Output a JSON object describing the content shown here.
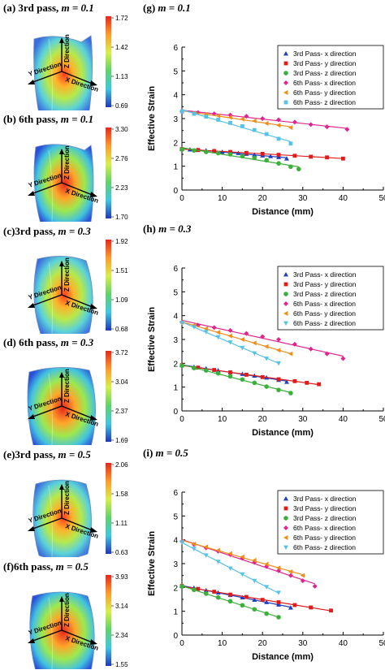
{
  "left_panels": [
    {
      "label": "(a) 3rd pass,",
      "tick_labels": [
        "1.72",
        "1.42",
        "1.13",
        "0.69"
      ],
      "axes": {
        "y": "Y Direction",
        "x": "X Direction",
        "z": "Z Direction"
      }
    },
    {
      "label": "(b) 6th pass,",
      "tick_labels": [
        "3.30",
        "2.76",
        "2.23",
        "1.70"
      ],
      "axes": {
        "y": "Y Direction",
        "x": "X Direction",
        "z": "Z Direction"
      }
    },
    {
      "label": "(c)3rd pass,",
      "tick_labels": [
        "1.92",
        "1.51",
        "1.09",
        "0.68"
      ],
      "axes": {
        "y": "Y Direction",
        "x": "X Direction",
        "z": "Z Direction"
      }
    },
    {
      "label": "(d) 6th pass,",
      "tick_labels": [
        "3.72",
        "3.04",
        "2.37",
        "1.69"
      ],
      "axes": {
        "y": "Y Direction",
        "x": "X Direction",
        "z": "Z Direction"
      }
    },
    {
      "label": "(e)3rd pass,",
      "tick_labels": [
        "2.06",
        "1.58",
        "1.11",
        "0.63"
      ],
      "axes": {
        "y": "Y Direction",
        "x": "X Direction",
        "z": "Z Direction"
      }
    },
    {
      "label": "(f)6th pass,",
      "tick_labels": [
        "3.93",
        "3.14",
        "2.34",
        "1.55"
      ],
      "axes": {
        "y": "Y Direction",
        "x": "X Direction",
        "z": "Z Direction"
      }
    }
  ],
  "m_values": [
    "m = 0.1",
    "m = 0.1",
    "m = 0.3",
    "m = 0.3",
    "m = 0.5",
    "m = 0.5"
  ],
  "chart_data": [
    {
      "type": "scatter",
      "title": "(g) m = 0.1",
      "xlabel": "Distance (mm)",
      "ylabel": "Effective Strain",
      "xlim": [
        0,
        50
      ],
      "ylim": [
        0,
        6
      ],
      "xticks": [
        "0",
        "10",
        "20",
        "30",
        "40",
        "50"
      ],
      "yticks": [
        "0",
        "1",
        "2",
        "3",
        "4",
        "5",
        "6"
      ],
      "legend_position": "top-right",
      "series": [
        {
          "name": "3rd Pass- x direction",
          "color": "#1f3fbf",
          "marker": "triangle",
          "x": [
            0,
            2,
            4,
            6,
            8,
            10,
            12,
            14,
            16,
            18,
            20,
            22,
            24,
            26
          ],
          "y": [
            1.72,
            1.7,
            1.68,
            1.66,
            1.63,
            1.6,
            1.58,
            1.55,
            1.52,
            1.48,
            1.45,
            1.42,
            1.38,
            1.32
          ]
        },
        {
          "name": "3rd Pass- y direction",
          "color": "#e01b1b",
          "marker": "square",
          "x": [
            0,
            4,
            8,
            12,
            16,
            20,
            24,
            28,
            32,
            36,
            40
          ],
          "y": [
            1.72,
            1.68,
            1.64,
            1.6,
            1.56,
            1.52,
            1.48,
            1.44,
            1.4,
            1.37,
            1.32
          ]
        },
        {
          "name": "3rd Pass- z direction",
          "color": "#3bb03b",
          "marker": "circle",
          "x": [
            0,
            3,
            6,
            9,
            12,
            15,
            18,
            21,
            24,
            27,
            29
          ],
          "y": [
            1.7,
            1.66,
            1.6,
            1.55,
            1.5,
            1.42,
            1.35,
            1.25,
            1.12,
            0.98,
            0.88
          ]
        },
        {
          "name": "6th Pass- x direction",
          "color": "#e0258f",
          "marker": "diamond",
          "x": [
            0,
            4,
            8,
            12,
            16,
            20,
            24,
            28,
            32,
            36,
            41
          ],
          "y": [
            3.3,
            3.25,
            3.2,
            3.15,
            3.1,
            3.0,
            2.95,
            2.85,
            2.75,
            2.65,
            2.55
          ]
        },
        {
          "name": "6th Pass- y direction",
          "color": "#ef8c1a",
          "marker": "triangle-left",
          "x": [
            0,
            3,
            6,
            9,
            12,
            15,
            18,
            21,
            24,
            27
          ],
          "y": [
            3.3,
            3.24,
            3.18,
            3.12,
            3.05,
            2.98,
            2.9,
            2.8,
            2.72,
            2.62
          ]
        },
        {
          "name": "6th Pass- z direction",
          "color": "#57c2e8",
          "marker": "square",
          "x": [
            0,
            3,
            6,
            9,
            12,
            15,
            18,
            21,
            24,
            27
          ],
          "y": [
            3.3,
            3.2,
            3.08,
            2.95,
            2.82,
            2.68,
            2.52,
            2.35,
            2.15,
            1.95
          ]
        }
      ]
    },
    {
      "type": "scatter",
      "title": "(h) m = 0.3",
      "xlabel": "Distance (mm)",
      "ylabel": "Effective Strain",
      "xlim": [
        0,
        50
      ],
      "ylim": [
        0,
        6
      ],
      "xticks": [
        "0",
        "10",
        "20",
        "30",
        "40",
        "50"
      ],
      "yticks": [
        "0",
        "1",
        "2",
        "3",
        "4",
        "5",
        "6"
      ],
      "legend_position": "top-right",
      "series": [
        {
          "name": "3rd Pass- x direction",
          "color": "#1f3fbf",
          "marker": "triangle",
          "x": [
            0,
            3,
            6,
            9,
            12,
            15,
            18,
            21,
            24,
            26
          ],
          "y": [
            1.92,
            1.85,
            1.78,
            1.7,
            1.62,
            1.55,
            1.48,
            1.4,
            1.3,
            1.22
          ]
        },
        {
          "name": "3rd Pass- y direction",
          "color": "#e01b1b",
          "marker": "square",
          "x": [
            0,
            4,
            8,
            12,
            16,
            20,
            24,
            28,
            31,
            34
          ],
          "y": [
            1.92,
            1.82,
            1.72,
            1.62,
            1.52,
            1.42,
            1.33,
            1.25,
            1.18,
            1.12
          ]
        },
        {
          "name": "3rd Pass- z direction",
          "color": "#3bb03b",
          "marker": "circle",
          "x": [
            0,
            3,
            6,
            9,
            12,
            15,
            18,
            21,
            24,
            27
          ],
          "y": [
            1.9,
            1.8,
            1.7,
            1.58,
            1.45,
            1.32,
            1.18,
            1.02,
            0.88,
            0.75
          ]
        },
        {
          "name": "6th Pass- x direction",
          "color": "#e0258f",
          "marker": "diamond",
          "x": [
            0,
            4,
            8,
            12,
            16,
            20,
            24,
            28,
            32,
            36,
            40
          ],
          "y": [
            3.72,
            3.6,
            3.5,
            3.38,
            3.25,
            3.12,
            3.0,
            2.8,
            2.6,
            2.4,
            2.2
          ]
        },
        {
          "name": "6th Pass- y direction",
          "color": "#ef8c1a",
          "marker": "triangle-left",
          "x": [
            0,
            3,
            6,
            9,
            12,
            15,
            18,
            21,
            24,
            27
          ],
          "y": [
            3.72,
            3.6,
            3.45,
            3.3,
            3.15,
            3.0,
            2.85,
            2.7,
            2.55,
            2.4
          ]
        },
        {
          "name": "6th Pass- z direction",
          "color": "#57c2e8",
          "marker": "triangle-down",
          "x": [
            0,
            3,
            6,
            9,
            12,
            15,
            18,
            21,
            24
          ],
          "y": [
            3.7,
            3.52,
            3.32,
            3.1,
            2.88,
            2.65,
            2.42,
            2.2,
            2.0
          ]
        }
      ]
    },
    {
      "type": "scatter",
      "title": "(i) m = 0.5",
      "xlabel": "Distance (mm)",
      "ylabel": "Effective Strain",
      "xlim": [
        0,
        50
      ],
      "ylim": [
        0,
        6
      ],
      "xticks": [
        "0",
        "10",
        "20",
        "30",
        "40",
        "50"
      ],
      "yticks": [
        "0",
        "1",
        "2",
        "3",
        "4",
        "5",
        "6"
      ],
      "legend_position": "top-right",
      "series": [
        {
          "name": "3rd Pass- x direction",
          "color": "#1f3fbf",
          "marker": "triangle",
          "x": [
            0,
            3,
            6,
            9,
            12,
            15,
            18,
            21,
            24,
            27
          ],
          "y": [
            2.06,
            1.98,
            1.88,
            1.78,
            1.68,
            1.58,
            1.48,
            1.38,
            1.28,
            1.15
          ]
        },
        {
          "name": "3rd Pass- y direction",
          "color": "#e01b1b",
          "marker": "square",
          "x": [
            0,
            4,
            8,
            12,
            16,
            20,
            24,
            28,
            32,
            37
          ],
          "y": [
            2.06,
            1.94,
            1.82,
            1.7,
            1.6,
            1.48,
            1.38,
            1.26,
            1.16,
            1.03
          ]
        },
        {
          "name": "3rd Pass- z direction",
          "color": "#3bb03b",
          "marker": "circle",
          "x": [
            0,
            3,
            6,
            9,
            12,
            15,
            18,
            21,
            24
          ],
          "y": [
            2.04,
            1.9,
            1.74,
            1.58,
            1.42,
            1.25,
            1.08,
            0.9,
            0.75
          ]
        },
        {
          "name": "6th Pass- x direction",
          "color": "#e0258f",
          "marker": "diamond",
          "x": [
            0,
            3,
            6,
            9,
            12,
            15,
            18,
            21,
            24,
            27,
            30,
            33
          ],
          "y": [
            3.93,
            3.8,
            3.66,
            3.52,
            3.38,
            3.22,
            3.05,
            2.88,
            2.7,
            2.5,
            2.28,
            2.05
          ]
        },
        {
          "name": "6th Pass- y direction",
          "color": "#ef8c1a",
          "marker": "triangle-left",
          "x": [
            0,
            3,
            6,
            9,
            12,
            15,
            18,
            21,
            24,
            27,
            30
          ],
          "y": [
            3.93,
            3.82,
            3.7,
            3.56,
            3.42,
            3.28,
            3.14,
            2.98,
            2.82,
            2.66,
            2.5
          ]
        },
        {
          "name": "6th Pass- z direction",
          "color": "#57c2e8",
          "marker": "triangle-down",
          "x": [
            0,
            3,
            6,
            9,
            12,
            15,
            18,
            21,
            24
          ],
          "y": [
            3.9,
            3.62,
            3.35,
            3.08,
            2.8,
            2.55,
            2.28,
            2.02,
            1.78
          ]
        }
      ]
    }
  ]
}
